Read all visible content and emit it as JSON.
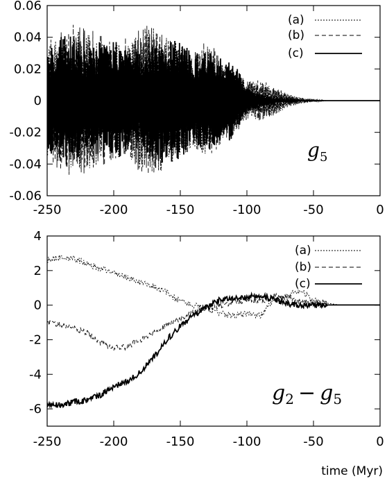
{
  "chart_data": [
    {
      "type": "line",
      "title": "",
      "annotation": {
        "base": "g",
        "sub": "5",
        "op": "",
        "base2": "",
        "sub2": ""
      },
      "xlabel": "",
      "ylabel": "",
      "xlim": [
        -250,
        0
      ],
      "ylim": [
        -0.06,
        0.06
      ],
      "xticks": [
        -250,
        -200,
        -150,
        -100,
        -50,
        0
      ],
      "xtick_labels": [
        "-250",
        "-200",
        "-150",
        "-100",
        "-50",
        "0"
      ],
      "yticks": [
        -0.06,
        -0.04,
        -0.02,
        0,
        0.02,
        0.04,
        0.06
      ],
      "ytick_labels": [
        "-0.06",
        "-0.04",
        "-0.02",
        "0",
        "0.02",
        "0.04",
        "0.06"
      ],
      "grid": false,
      "legend_position": "top-right",
      "series": [
        {
          "name": "(a)",
          "style": "dotted",
          "x": [
            -250,
            -240,
            -230,
            -220,
            -210,
            -200,
            -190,
            -180,
            -170,
            -160,
            -150,
            -140,
            -130,
            -120,
            -110,
            -100,
            -90,
            -80,
            -70,
            -60,
            -50,
            -40,
            -30,
            -20,
            -10,
            0
          ],
          "envelope": [
            0.035,
            0.04,
            0.043,
            0.045,
            0.04,
            0.035,
            0.038,
            0.043,
            0.048,
            0.042,
            0.035,
            0.03,
            0.035,
            0.028,
            0.02,
            0.012,
            0.012,
            0.009,
            0.005,
            0.002,
            0.001,
            0,
            0,
            0,
            0,
            0
          ]
        },
        {
          "name": "(b)",
          "style": "dashed",
          "x": [
            -250,
            -240,
            -230,
            -220,
            -210,
            -200,
            -190,
            -180,
            -170,
            -160,
            -150,
            -140,
            -130,
            -120,
            -110,
            -100,
            -90,
            -80,
            -70,
            -60,
            -50,
            -40,
            -30,
            -20,
            -10,
            0
          ],
          "envelope": [
            0.04,
            0.045,
            0.048,
            0.046,
            0.042,
            0.038,
            0.04,
            0.045,
            0.05,
            0.04,
            0.035,
            0.032,
            0.038,
            0.03,
            0.022,
            0.012,
            0.013,
            0.01,
            0.004,
            0.002,
            0.001,
            0,
            0,
            0,
            0,
            0
          ]
        },
        {
          "name": "(c)",
          "style": "solid",
          "x": [
            -250,
            -240,
            -230,
            -220,
            -210,
            -200,
            -190,
            -180,
            -170,
            -160,
            -150,
            -140,
            -130,
            -120,
            -110,
            -100,
            -90,
            -80,
            -70,
            -60,
            -50,
            -40,
            -30,
            -20,
            -10,
            0
          ],
          "envelope": [
            0.03,
            0.042,
            0.04,
            0.032,
            0.038,
            0.04,
            0.035,
            0.03,
            0.038,
            0.04,
            0.038,
            0.03,
            0.032,
            0.03,
            0.025,
            0.008,
            0.004,
            0.002,
            0.001,
            0,
            0,
            0,
            0,
            0,
            0,
            0
          ]
        }
      ]
    },
    {
      "type": "line",
      "title": "",
      "annotation": {
        "base": "g",
        "sub": "2",
        "op": "−",
        "base2": "g",
        "sub2": "5"
      },
      "xlabel": "time (Myr)",
      "ylabel": "",
      "xlim": [
        -250,
        0
      ],
      "ylim": [
        -7,
        4
      ],
      "xticks": [
        -250,
        -200,
        -150,
        -100,
        -50,
        0
      ],
      "xtick_labels": [
        "-250",
        "-200",
        "-150",
        "-100",
        "-50",
        "0"
      ],
      "yticks": [
        -6,
        -4,
        -2,
        0,
        2,
        4
      ],
      "ytick_labels": [
        "-6",
        "-4",
        "-2",
        "0",
        "2",
        "4"
      ],
      "grid": false,
      "legend_position": "top-right",
      "series": [
        {
          "name": "(a)",
          "style": "dotted",
          "x": [
            -250,
            -240,
            -230,
            -220,
            -210,
            -200,
            -190,
            -180,
            -170,
            -160,
            -150,
            -140,
            -130,
            -120,
            -110,
            -100,
            -90,
            -80,
            -70,
            -60,
            -50,
            -40,
            -30,
            -20,
            -10,
            0
          ],
          "y": [
            2.6,
            2.8,
            2.7,
            2.4,
            2.1,
            1.9,
            1.6,
            1.3,
            1.1,
            0.7,
            0.2,
            0.0,
            -0.2,
            -0.5,
            -0.6,
            -0.5,
            -0.6,
            0.3,
            0.5,
            0.9,
            0.3,
            0.1,
            0.0,
            0.0,
            0.0,
            0.0
          ]
        },
        {
          "name": "(b)",
          "style": "dashed",
          "x": [
            -250,
            -240,
            -230,
            -220,
            -210,
            -200,
            -190,
            -180,
            -170,
            -160,
            -150,
            -140,
            -130,
            -120,
            -110,
            -100,
            -90,
            -80,
            -70,
            -60,
            -50,
            -40,
            -30,
            -20,
            -10,
            0
          ],
          "y": [
            -1.0,
            -1.1,
            -1.3,
            -1.6,
            -2.2,
            -2.5,
            -2.4,
            -2.0,
            -1.6,
            -1.1,
            -0.8,
            -0.4,
            -0.2,
            0.0,
            0.2,
            0.3,
            0.2,
            0.5,
            0.4,
            0.2,
            0.1,
            0.0,
            0.0,
            0.0,
            0.0,
            0.0
          ]
        },
        {
          "name": "(c)",
          "style": "solid",
          "x": [
            -250,
            -240,
            -230,
            -220,
            -210,
            -200,
            -190,
            -180,
            -170,
            -160,
            -150,
            -140,
            -130,
            -120,
            -110,
            -100,
            -90,
            -80,
            -70,
            -60,
            -50,
            -40,
            -30,
            -20,
            -10,
            0
          ],
          "y": [
            -5.7,
            -5.8,
            -5.6,
            -5.5,
            -5.2,
            -4.7,
            -4.4,
            -3.9,
            -3.0,
            -2.0,
            -1.2,
            -0.6,
            -0.1,
            0.3,
            0.4,
            0.5,
            0.5,
            0.4,
            0.05,
            0.0,
            0.0,
            0.0,
            0.0,
            0.0,
            0.0,
            0.0
          ]
        }
      ]
    }
  ]
}
